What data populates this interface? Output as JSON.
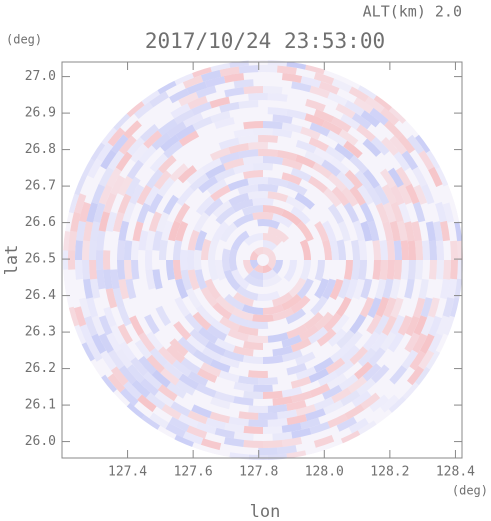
{
  "chart_data": {
    "type": "radar-ppi",
    "title": "2017/10/24 23:53:00",
    "annotation": "ALT(km) 2.0",
    "x_label": "lon",
    "y_label": "lat",
    "x_unit": "(deg)",
    "y_unit": "(deg)",
    "xlim": [
      127.2,
      128.42
    ],
    "ylim": [
      25.955,
      27.04
    ],
    "xticks": [
      127.4,
      127.6,
      127.8,
      {
        "value": 128.0,
        "label": "128.0"
      },
      128.2,
      128.4
    ],
    "yticks": [
      {
        "value": 26.0,
        "label": "26.0"
      },
      26.1,
      26.2,
      26.3,
      26.4,
      26.5,
      26.6,
      26.7,
      26.8,
      26.9,
      {
        "value": 27.0,
        "label": "27.0"
      }
    ]
  }
}
